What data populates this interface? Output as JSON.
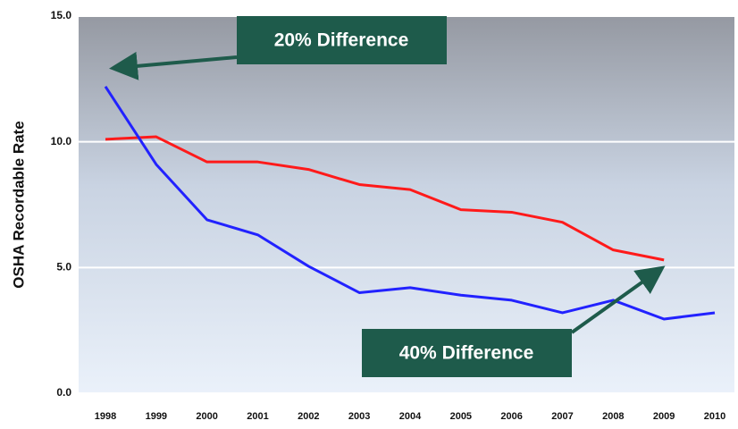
{
  "chart_data": {
    "type": "line",
    "y_label": "OSHA Recordable Rate",
    "categories": [
      "1998",
      "1999",
      "2000",
      "2001",
      "2002",
      "2003",
      "2004",
      "2005",
      "2006",
      "2007",
      "2008",
      "2009",
      "2010"
    ],
    "series": [
      {
        "color": "#ff1a1a",
        "values": [
          10.1,
          10.2,
          9.2,
          9.2,
          8.9,
          8.3,
          8.1,
          7.3,
          7.2,
          6.8,
          5.7,
          5.3,
          null
        ]
      },
      {
        "color": "#2222ff",
        "values": [
          12.2,
          9.1,
          6.9,
          6.3,
          5.05,
          4.0,
          4.2,
          3.9,
          3.7,
          3.2,
          3.7,
          2.95,
          3.2
        ]
      }
    ],
    "ylim": [
      0,
      15
    ],
    "yticks": [
      {
        "value": 0,
        "label": "0.0"
      },
      {
        "value": 5,
        "label": "5.0"
      },
      {
        "value": 10,
        "label": "10.0"
      },
      {
        "value": 15,
        "label": "15.0"
      }
    ],
    "grid": true,
    "annotations": [
      "20%  Difference",
      "40%  Difference"
    ]
  }
}
